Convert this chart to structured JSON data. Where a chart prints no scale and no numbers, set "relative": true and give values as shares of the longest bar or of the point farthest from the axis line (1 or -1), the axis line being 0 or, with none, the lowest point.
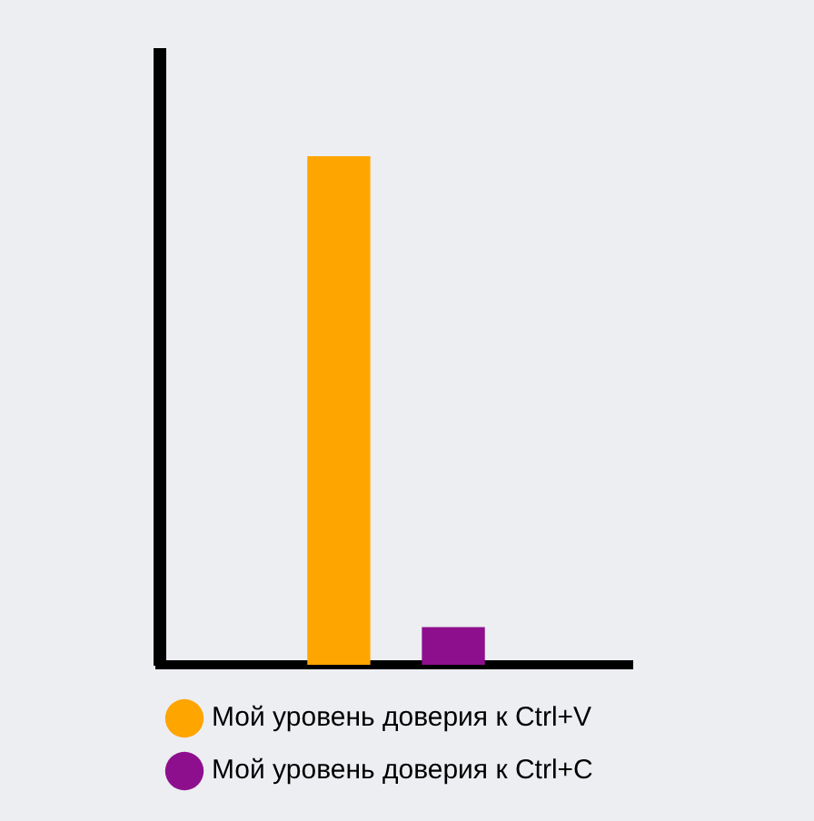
{
  "chart_data": {
    "type": "bar",
    "relative": true,
    "categories": [
      null
    ],
    "legend": "bottom",
    "grid": false,
    "series": [
      {
        "name": "Мой уровень доверия к Ctrl+V",
        "color": "#ffa500",
        "values": [
          1
        ]
      },
      {
        "name": "Мой уровень доверия к Ctrl+C",
        "color": "#8e0f8e",
        "values": [
          0.074
        ]
      }
    ]
  }
}
